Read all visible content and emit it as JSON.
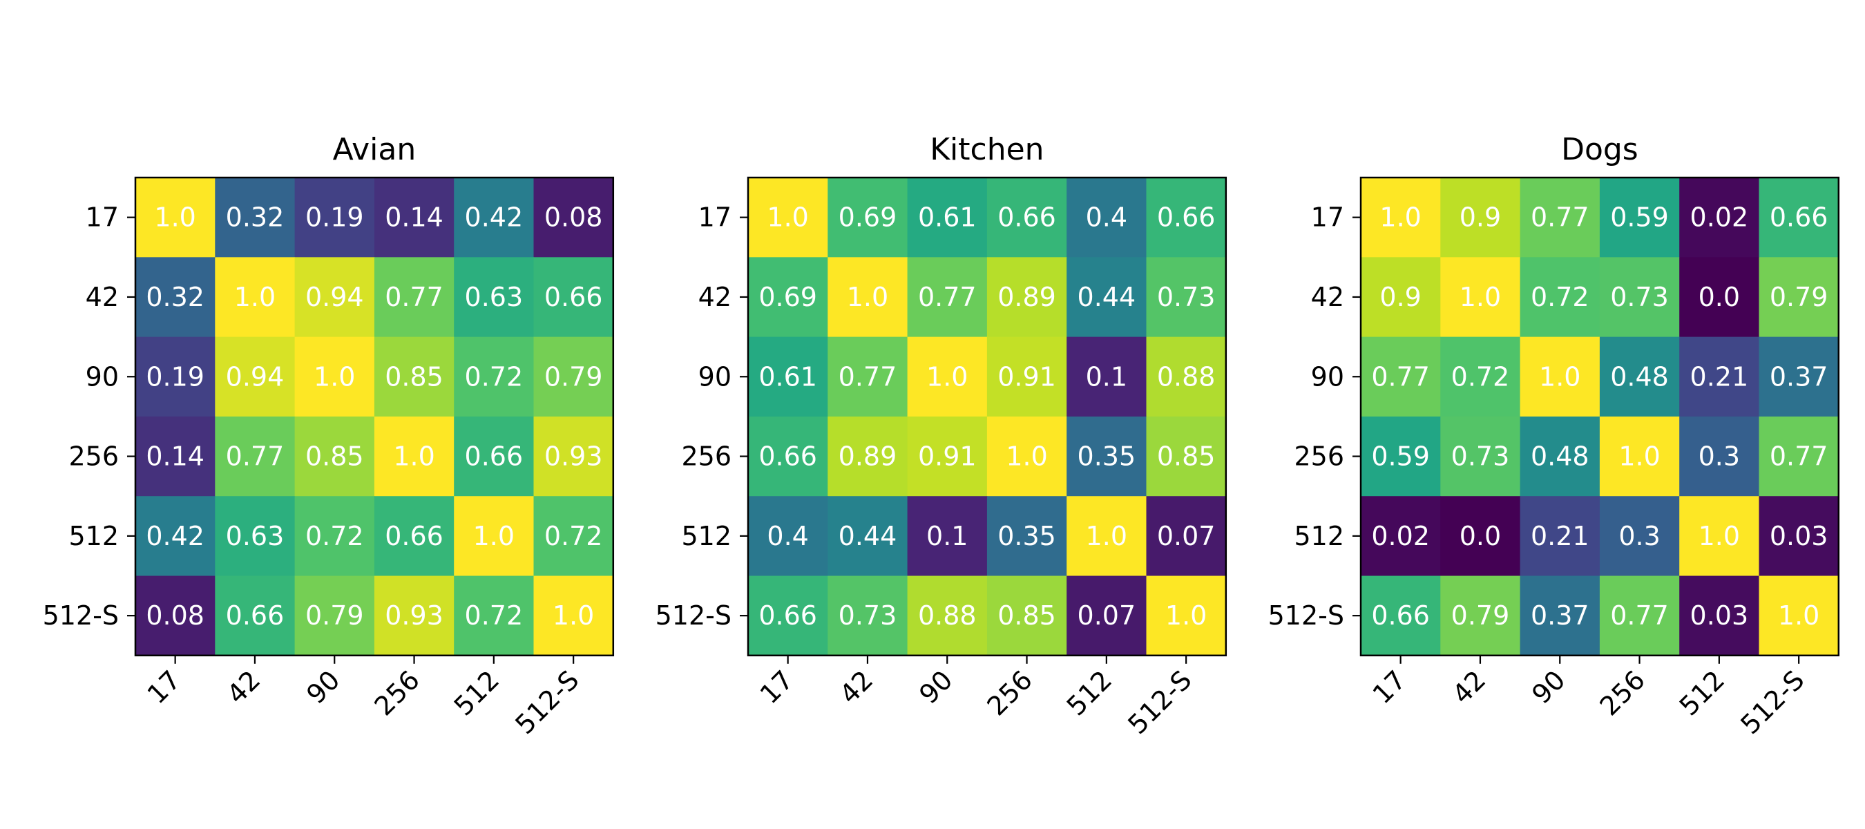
{
  "chart_data": [
    {
      "type": "heatmap",
      "title": "Avian",
      "xlabel": "",
      "ylabel": "",
      "categories": [
        "17",
        "42",
        "90",
        "256",
        "512",
        "512-S"
      ],
      "color_range": [
        0,
        1
      ],
      "colormap": "viridis",
      "matrix": [
        [
          1.0,
          0.32,
          0.19,
          0.14,
          0.42,
          0.08
        ],
        [
          0.32,
          1.0,
          0.94,
          0.77,
          0.63,
          0.66
        ],
        [
          0.19,
          0.94,
          1.0,
          0.85,
          0.72,
          0.79
        ],
        [
          0.14,
          0.77,
          0.85,
          1.0,
          0.66,
          0.93
        ],
        [
          0.42,
          0.63,
          0.72,
          0.66,
          1.0,
          0.72
        ],
        [
          0.08,
          0.66,
          0.79,
          0.93,
          0.72,
          1.0
        ]
      ]
    },
    {
      "type": "heatmap",
      "title": "Kitchen",
      "xlabel": "",
      "ylabel": "",
      "categories": [
        "17",
        "42",
        "90",
        "256",
        "512",
        "512-S"
      ],
      "color_range": [
        0,
        1
      ],
      "colormap": "viridis",
      "matrix": [
        [
          1.0,
          0.69,
          0.61,
          0.66,
          0.4,
          0.66
        ],
        [
          0.69,
          1.0,
          0.77,
          0.89,
          0.44,
          0.73
        ],
        [
          0.61,
          0.77,
          1.0,
          0.91,
          0.1,
          0.88
        ],
        [
          0.66,
          0.89,
          0.91,
          1.0,
          0.35,
          0.85
        ],
        [
          0.4,
          0.44,
          0.1,
          0.35,
          1.0,
          0.07
        ],
        [
          0.66,
          0.73,
          0.88,
          0.85,
          0.07,
          1.0
        ]
      ]
    },
    {
      "type": "heatmap",
      "title": "Dogs",
      "xlabel": "",
      "ylabel": "",
      "categories": [
        "17",
        "42",
        "90",
        "256",
        "512",
        "512-S"
      ],
      "color_range": [
        0,
        1
      ],
      "colormap": "viridis",
      "matrix": [
        [
          1.0,
          0.9,
          0.77,
          0.59,
          0.02,
          0.66
        ],
        [
          0.9,
          1.0,
          0.72,
          0.73,
          0.0,
          0.79
        ],
        [
          0.77,
          0.72,
          1.0,
          0.48,
          0.21,
          0.37
        ],
        [
          0.59,
          0.73,
          0.48,
          1.0,
          0.3,
          0.77
        ],
        [
          0.02,
          0.0,
          0.21,
          0.3,
          1.0,
          0.03
        ],
        [
          0.66,
          0.79,
          0.37,
          0.77,
          0.03,
          1.0
        ]
      ]
    }
  ]
}
